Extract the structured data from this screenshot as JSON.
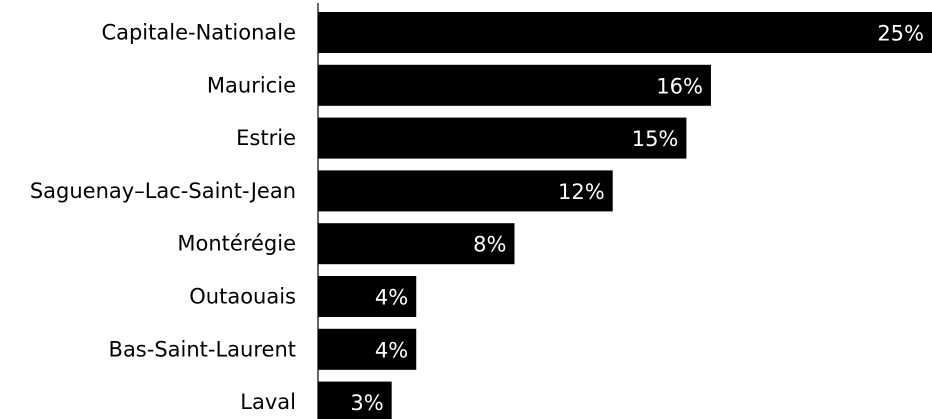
{
  "chart_data": {
    "type": "bar",
    "orientation": "horizontal",
    "categories": [
      "Capitale-Nationale",
      "Mauricie",
      "Estrie",
      "Saguenay–Lac-Saint-Jean",
      "Montérégie",
      "Outaouais",
      "Bas-Saint-Laurent",
      "Laval"
    ],
    "values": [
      25,
      16,
      15,
      12,
      8,
      4,
      4,
      3
    ],
    "value_labels": [
      "25%",
      "16%",
      "15%",
      "12%",
      "8%",
      "4%",
      "4%",
      "3%"
    ],
    "xlim": [
      0,
      25
    ],
    "title": "",
    "xlabel": "",
    "ylabel": "",
    "grid": false,
    "legend": "none",
    "colors": {
      "bar": "#000000",
      "axis": "#000000",
      "label": "#000000",
      "value_label": "#ffffff"
    }
  }
}
